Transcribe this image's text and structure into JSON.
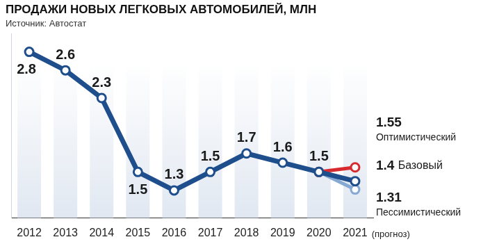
{
  "chart_data": {
    "type": "line",
    "title": "ПРОДАЖИ НОВЫХ ЛЕГКОВЫХ АВТОМОБИЛЕЙ, МЛН",
    "subtitle": "Источник: Автостат",
    "annotation": "(прогноз)",
    "categories": [
      "2012",
      "2013",
      "2014",
      "2015",
      "2016",
      "2017",
      "2018",
      "2019",
      "2020",
      "2021"
    ],
    "series": [
      {
        "name": "Базовый",
        "color": "#1f4e8c",
        "values": [
          2.8,
          2.6,
          2.3,
          1.5,
          1.3,
          1.5,
          1.7,
          1.6,
          1.5,
          1.4
        ]
      },
      {
        "name": "Оптимистический",
        "color": "#d62a2f",
        "values": [
          null,
          null,
          null,
          null,
          null,
          null,
          null,
          null,
          1.5,
          1.55
        ]
      },
      {
        "name": "Пессимистический",
        "color": "#86a9d3",
        "values": [
          null,
          null,
          null,
          null,
          null,
          null,
          null,
          null,
          1.5,
          1.31
        ]
      }
    ],
    "ylim": [
      1.0,
      3.0
    ],
    "tick_labels": "x",
    "grid": false,
    "data_labels": true,
    "marker": "circle"
  }
}
